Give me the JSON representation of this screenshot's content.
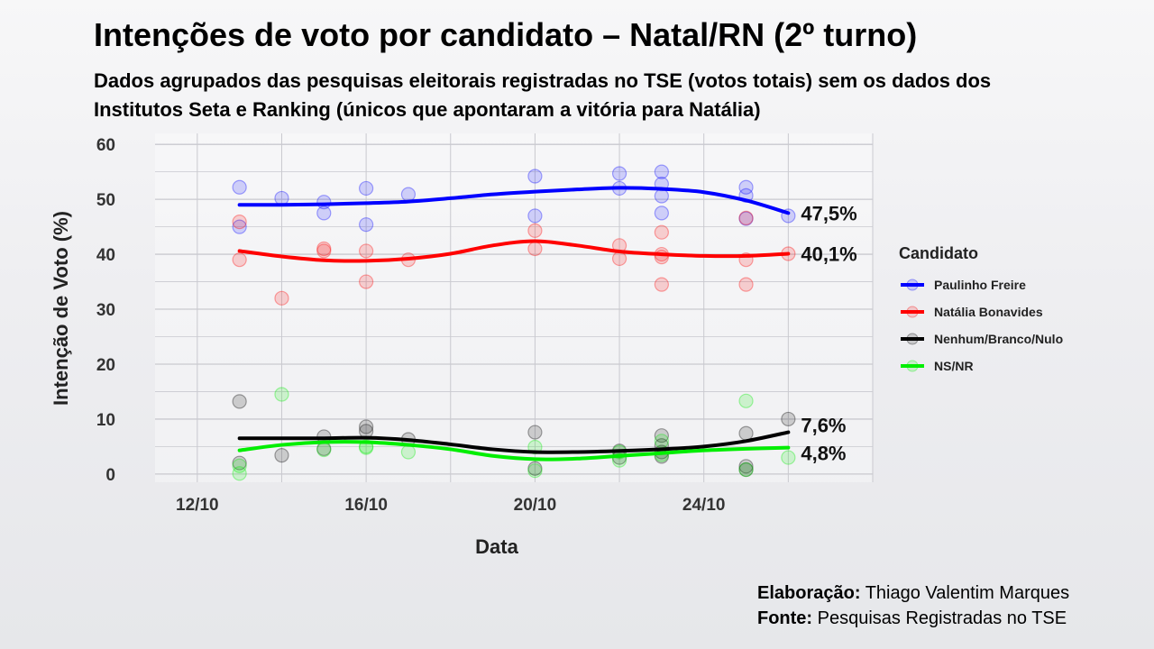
{
  "header": {
    "title": "Intenções de voto por candidato – Natal/RN (2º turno)",
    "subtitle": "Dados agrupados das pesquisas eleitorais registradas no TSE (votos totais) sem os dados dos Institutos Seta e Ranking (únicos que apontaram a vitória para Natália)"
  },
  "credits": {
    "elaboracao_label": "Elaboração:",
    "elaboracao_value": "Thiago Valentim Marques",
    "fonte_label": "Fonte:",
    "fonte_value": "Pesquisas Registradas no TSE"
  },
  "colors": {
    "Paulinho Freire": "#0000ff",
    "Natália Bonavides": "#ff0000",
    "Nenhum/Branco/Nulo": "#000000",
    "NS/NR": "#00ee00"
  },
  "chart_data": {
    "type": "scatter",
    "xlabel": "Data",
    "ylabel": "Intenção de Voto (%)",
    "xlim": [
      "2024-10-11",
      "2024-10-28"
    ],
    "ylim": [
      -1.5,
      62
    ],
    "x_ticks": [
      "12/10",
      "16/10",
      "20/10",
      "24/10"
    ],
    "x_tick_dates": [
      "2024-10-12",
      "2024-10-16",
      "2024-10-20",
      "2024-10-24"
    ],
    "y_ticks": [
      0,
      10,
      20,
      30,
      40,
      50,
      60
    ],
    "grid": true,
    "legend": {
      "title": "Candidato",
      "position": "right"
    },
    "series": [
      {
        "name": "Paulinho Freire",
        "end_label": "47,5%",
        "points": [
          [
            "2024-10-13",
            52.2
          ],
          [
            "2024-10-13",
            45.0
          ],
          [
            "2024-10-14",
            50.2
          ],
          [
            "2024-10-15",
            49.5
          ],
          [
            "2024-10-15",
            47.5
          ],
          [
            "2024-10-16",
            52.0
          ],
          [
            "2024-10-16",
            45.4
          ],
          [
            "2024-10-17",
            50.9
          ],
          [
            "2024-10-20",
            54.2
          ],
          [
            "2024-10-20",
            47.0
          ],
          [
            "2024-10-22",
            54.7
          ],
          [
            "2024-10-22",
            52.0
          ],
          [
            "2024-10-23",
            55.0
          ],
          [
            "2024-10-23",
            52.8
          ],
          [
            "2024-10-23",
            50.6
          ],
          [
            "2024-10-23",
            47.5
          ],
          [
            "2024-10-25",
            52.2
          ],
          [
            "2024-10-25",
            50.7
          ],
          [
            "2024-10-25",
            46.5
          ],
          [
            "2024-10-26",
            47.0
          ]
        ],
        "trend": [
          [
            "2024-10-13",
            49.0
          ],
          [
            "2024-10-14",
            49.0
          ],
          [
            "2024-10-15",
            49.1
          ],
          [
            "2024-10-16",
            49.3
          ],
          [
            "2024-10-17",
            49.6
          ],
          [
            "2024-10-18",
            50.2
          ],
          [
            "2024-10-19",
            50.9
          ],
          [
            "2024-10-20",
            51.4
          ],
          [
            "2024-10-21",
            51.8
          ],
          [
            "2024-10-22",
            52.1
          ],
          [
            "2024-10-23",
            51.9
          ],
          [
            "2024-10-24",
            51.3
          ],
          [
            "2024-10-25",
            49.8
          ],
          [
            "2024-10-26",
            47.5
          ]
        ]
      },
      {
        "name": "Natália Bonavides",
        "end_label": "40,1%",
        "points": [
          [
            "2024-10-13",
            45.9
          ],
          [
            "2024-10-13",
            39.0
          ],
          [
            "2024-10-14",
            32.0
          ],
          [
            "2024-10-15",
            41.0
          ],
          [
            "2024-10-15",
            40.6
          ],
          [
            "2024-10-16",
            40.6
          ],
          [
            "2024-10-16",
            35.0
          ],
          [
            "2024-10-17",
            39.0
          ],
          [
            "2024-10-20",
            44.3
          ],
          [
            "2024-10-20",
            41.0
          ],
          [
            "2024-10-22",
            41.6
          ],
          [
            "2024-10-22",
            39.2
          ],
          [
            "2024-10-23",
            44.0
          ],
          [
            "2024-10-23",
            40.0
          ],
          [
            "2024-10-23",
            39.5
          ],
          [
            "2024-10-23",
            34.5
          ],
          [
            "2024-10-25",
            46.6
          ],
          [
            "2024-10-25",
            39.0
          ],
          [
            "2024-10-25",
            34.5
          ],
          [
            "2024-10-26",
            40.1
          ]
        ],
        "trend": [
          [
            "2024-10-13",
            40.6
          ],
          [
            "2024-10-14",
            39.6
          ],
          [
            "2024-10-15",
            38.9
          ],
          [
            "2024-10-16",
            38.8
          ],
          [
            "2024-10-17",
            39.2
          ],
          [
            "2024-10-18",
            40.1
          ],
          [
            "2024-10-19",
            41.6
          ],
          [
            "2024-10-20",
            42.4
          ],
          [
            "2024-10-21",
            41.6
          ],
          [
            "2024-10-22",
            40.5
          ],
          [
            "2024-10-23",
            40.0
          ],
          [
            "2024-10-24",
            39.7
          ],
          [
            "2024-10-25",
            39.7
          ],
          [
            "2024-10-26",
            40.1
          ]
        ]
      },
      {
        "name": "Nenhum/Branco/Nulo",
        "end_label": "7,6%",
        "points": [
          [
            "2024-10-13",
            13.2
          ],
          [
            "2024-10-13",
            2.0
          ],
          [
            "2024-10-14",
            3.4
          ],
          [
            "2024-10-15",
            6.8
          ],
          [
            "2024-10-15",
            4.6
          ],
          [
            "2024-10-16",
            8.6
          ],
          [
            "2024-10-16",
            7.8
          ],
          [
            "2024-10-17",
            6.3
          ],
          [
            "2024-10-20",
            7.6
          ],
          [
            "2024-10-20",
            1.0
          ],
          [
            "2024-10-22",
            4.2
          ],
          [
            "2024-10-22",
            3.0
          ],
          [
            "2024-10-23",
            7.0
          ],
          [
            "2024-10-23",
            5.2
          ],
          [
            "2024-10-23",
            4.0
          ],
          [
            "2024-10-23",
            3.2
          ],
          [
            "2024-10-25",
            7.4
          ],
          [
            "2024-10-25",
            1.4
          ],
          [
            "2024-10-25",
            0.8
          ],
          [
            "2024-10-26",
            10.0
          ]
        ],
        "trend": [
          [
            "2024-10-13",
            6.5
          ],
          [
            "2024-10-14",
            6.5
          ],
          [
            "2024-10-15",
            6.5
          ],
          [
            "2024-10-16",
            6.6
          ],
          [
            "2024-10-17",
            6.2
          ],
          [
            "2024-10-18",
            5.4
          ],
          [
            "2024-10-19",
            4.5
          ],
          [
            "2024-10-20",
            4.0
          ],
          [
            "2024-10-21",
            4.0
          ],
          [
            "2024-10-22",
            4.2
          ],
          [
            "2024-10-23",
            4.5
          ],
          [
            "2024-10-24",
            5.0
          ],
          [
            "2024-10-25",
            6.0
          ],
          [
            "2024-10-26",
            7.6
          ]
        ]
      },
      {
        "name": "NS/NR",
        "end_label": "4,8%",
        "points": [
          [
            "2024-10-13",
            0.1
          ],
          [
            "2024-10-13",
            1.5
          ],
          [
            "2024-10-14",
            14.5
          ],
          [
            "2024-10-15",
            4.4
          ],
          [
            "2024-10-16",
            5.0
          ],
          [
            "2024-10-16",
            4.8
          ],
          [
            "2024-10-17",
            4.0
          ],
          [
            "2024-10-20",
            4.9
          ],
          [
            "2024-10-20",
            0.6
          ],
          [
            "2024-10-22",
            2.5
          ],
          [
            "2024-10-22",
            4.0
          ],
          [
            "2024-10-23",
            6.0
          ],
          [
            "2024-10-23",
            3.5
          ],
          [
            "2024-10-25",
            13.3
          ],
          [
            "2024-10-25",
            0.8
          ],
          [
            "2024-10-26",
            3.0
          ]
        ],
        "trend": [
          [
            "2024-10-13",
            4.3
          ],
          [
            "2024-10-14",
            5.3
          ],
          [
            "2024-10-15",
            5.8
          ],
          [
            "2024-10-16",
            5.8
          ],
          [
            "2024-10-17",
            5.3
          ],
          [
            "2024-10-18",
            4.5
          ],
          [
            "2024-10-19",
            3.3
          ],
          [
            "2024-10-20",
            2.7
          ],
          [
            "2024-10-21",
            2.8
          ],
          [
            "2024-10-22",
            3.3
          ],
          [
            "2024-10-23",
            3.8
          ],
          [
            "2024-10-24",
            4.3
          ],
          [
            "2024-10-25",
            4.6
          ],
          [
            "2024-10-26",
            4.8
          ]
        ]
      }
    ]
  }
}
